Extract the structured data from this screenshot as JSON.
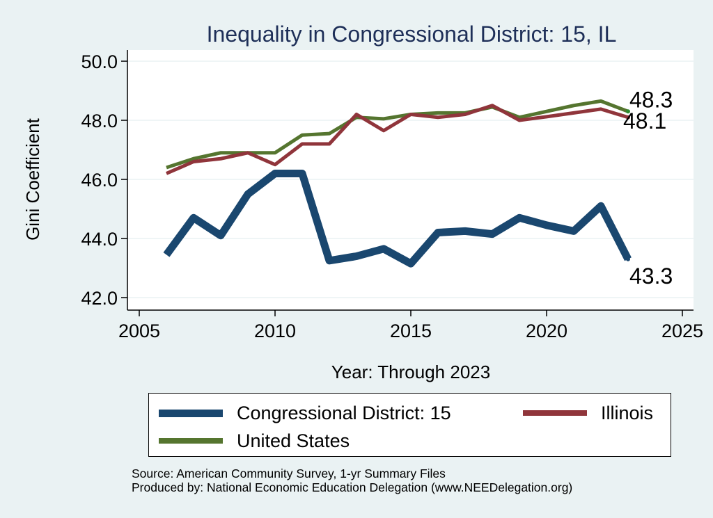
{
  "chart_data": {
    "type": "line",
    "title": "Inequality in Congressional District:  15, IL",
    "xlabel": "Year: Through 2023",
    "ylabel": "Gini Coefficient",
    "xlim": [
      2005,
      2025
    ],
    "ylim": [
      42.0,
      50.0
    ],
    "xticks": [
      "2005",
      "2010",
      "2015",
      "2020",
      "2025"
    ],
    "yticks": [
      "42.0",
      "44.0",
      "46.0",
      "48.0",
      "50.0"
    ],
    "grid": true,
    "x": [
      2006,
      2007,
      2008,
      2009,
      2010,
      2011,
      2012,
      2013,
      2014,
      2015,
      2016,
      2017,
      2018,
      2019,
      2020,
      2021,
      2022,
      2023
    ],
    "series": [
      {
        "name": "Congressional District:  15",
        "color": "#1a476f",
        "values": [
          43.45,
          44.7,
          44.1,
          45.5,
          46.2,
          46.2,
          43.25,
          43.4,
          43.65,
          43.15,
          44.2,
          44.25,
          44.15,
          44.7,
          44.45,
          44.25,
          45.1,
          43.3
        ],
        "end_label": "43.3"
      },
      {
        "name": "Illinois",
        "color": "#90353b",
        "values": [
          46.2,
          46.6,
          46.7,
          46.9,
          46.5,
          47.2,
          47.2,
          48.2,
          47.65,
          48.2,
          48.1,
          48.2,
          48.5,
          48.0,
          48.12,
          48.25,
          48.38,
          48.1
        ],
        "end_label": "48.1"
      },
      {
        "name": "United States",
        "color": "#55752f",
        "values": [
          46.4,
          46.7,
          46.9,
          46.9,
          46.9,
          47.5,
          47.55,
          48.1,
          48.05,
          48.2,
          48.25,
          48.25,
          48.45,
          48.1,
          48.3,
          48.5,
          48.65,
          48.3
        ],
        "end_label": "48.3"
      }
    ],
    "legend": {
      "position": "bottom",
      "entries": [
        "Congressional District:  15",
        "Illinois",
        "United States"
      ]
    }
  },
  "source_lines": [
    "Source: American Community Survey, 1-yr Summary Files",
    "Produced by: National Economic Education Delegation (www.NEEDelegation.org)"
  ]
}
